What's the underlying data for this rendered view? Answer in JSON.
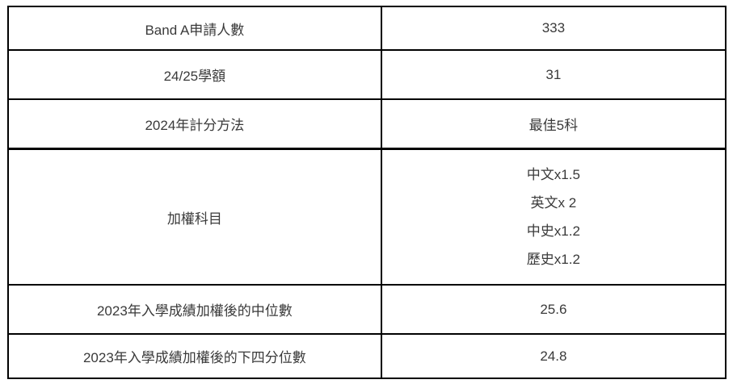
{
  "page": {
    "background_color": "#ffffff",
    "text_color": "#3a3a3a",
    "border_color": "#000000"
  },
  "table": {
    "name": "admission-statistics-table",
    "rows": [
      {
        "label": "Band A申請人數",
        "value": "333"
      },
      {
        "label": "24/25學額",
        "value": "31"
      },
      {
        "label": "2024年計分方法",
        "value": "最佳5科"
      },
      {
        "label": "加權科目",
        "values": [
          "中文x1.5",
          "英文x 2",
          "中史x1.2",
          "歷史x1.2"
        ]
      },
      {
        "label": "2023年入學成績加權後的中位數",
        "value": "25.6"
      },
      {
        "label": "2023年入學成績加權後的下四分位數",
        "value": "24.8"
      }
    ]
  },
  "chart_data": {
    "type": "table",
    "columns": [
      "item",
      "value"
    ],
    "rows": [
      [
        "Band A申請人數",
        "333"
      ],
      [
        "24/25學額",
        "31"
      ],
      [
        "2024年計分方法",
        "最佳5科"
      ],
      [
        "加權科目",
        "中文x1.5 / 英文x 2 / 中史x1.2 / 歷史x1.2"
      ],
      [
        "2023年入學成績加權後的中位數",
        "25.6"
      ],
      [
        "2023年入學成績加權後的下四分位數",
        "24.8"
      ]
    ]
  }
}
